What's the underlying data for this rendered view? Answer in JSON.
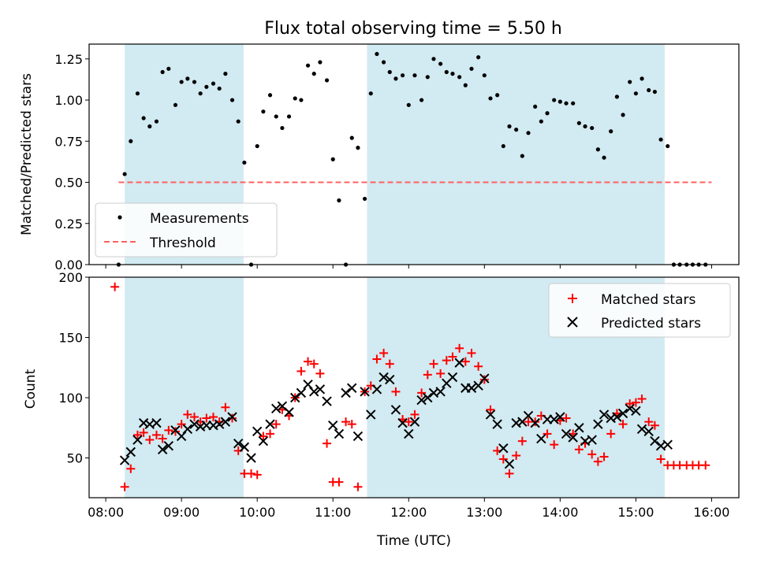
{
  "title": "Flux total observing time = 5.50 h",
  "colors": {
    "shade": "#add8e6",
    "measure": "#000000",
    "threshold": "#ff6060",
    "matched": "#ff0000",
    "predicted": "#000000"
  },
  "chart_data": [
    {
      "type": "scatter",
      "panel": "top",
      "ylabel": "Matched/Predicted stars",
      "xlim": [
        7.78,
        16.36
      ],
      "ylim": [
        0,
        1.34
      ],
      "yticks": [
        0.0,
        0.25,
        0.5,
        0.75,
        1.0,
        1.25
      ],
      "ytick_labels": [
        "0.00",
        "0.25",
        "0.50",
        "0.75",
        "1.00",
        "1.25"
      ],
      "shaded_regions": [
        [
          8.25,
          9.82
        ],
        [
          11.45,
          15.38
        ]
      ],
      "threshold": {
        "name": "Threshold",
        "y": 0.5,
        "x": [
          8.17,
          16.0
        ]
      },
      "legend": [
        "Measurements",
        "Threshold"
      ],
      "series": [
        {
          "name": "Measurements",
          "x": [
            8.17,
            8.25,
            8.33,
            8.42,
            8.5,
            8.58,
            8.67,
            8.75,
            8.83,
            8.92,
            9.0,
            9.08,
            9.17,
            9.25,
            9.33,
            9.42,
            9.5,
            9.58,
            9.67,
            9.75,
            9.83,
            9.92,
            10.0,
            10.08,
            10.17,
            10.25,
            10.33,
            10.42,
            10.5,
            10.58,
            10.67,
            10.75,
            10.83,
            10.92,
            11.0,
            11.08,
            11.17,
            11.25,
            11.33,
            11.42,
            11.5,
            11.58,
            11.67,
            11.75,
            11.83,
            11.92,
            12.0,
            12.08,
            12.17,
            12.25,
            12.33,
            12.42,
            12.5,
            12.58,
            12.67,
            12.75,
            12.83,
            12.92,
            13.0,
            13.08,
            13.17,
            13.25,
            13.33,
            13.42,
            13.5,
            13.58,
            13.67,
            13.75,
            13.83,
            13.92,
            14.0,
            14.08,
            14.17,
            14.25,
            14.33,
            14.42,
            14.5,
            14.58,
            14.67,
            14.75,
            14.83,
            14.92,
            15.0,
            15.08,
            15.17,
            15.25,
            15.33,
            15.42,
            15.5,
            15.58,
            15.67,
            15.75,
            15.83,
            15.92
          ],
          "y": [
            0.0,
            0.55,
            0.75,
            1.04,
            0.89,
            0.84,
            0.87,
            1.17,
            1.19,
            0.97,
            1.11,
            1.13,
            1.11,
            1.04,
            1.08,
            1.1,
            1.07,
            1.16,
            1.0,
            0.87,
            0.62,
            0.0,
            0.72,
            0.93,
            1.03,
            0.9,
            0.83,
            0.9,
            1.01,
            1.0,
            1.21,
            1.16,
            1.23,
            1.12,
            0.64,
            0.39,
            0.0,
            0.77,
            0.71,
            0.4,
            1.04,
            1.28,
            1.23,
            1.17,
            1.13,
            1.15,
            0.97,
            1.15,
            1.0,
            1.14,
            1.25,
            1.22,
            1.17,
            1.16,
            1.14,
            1.09,
            1.19,
            1.26,
            1.15,
            1.01,
            1.03,
            0.72,
            0.84,
            0.82,
            0.66,
            0.8,
            0.96,
            0.87,
            0.92,
            1.0,
            0.99,
            0.98,
            0.98,
            0.86,
            0.84,
            0.83,
            0.7,
            0.65,
            0.81,
            1.02,
            0.91,
            1.11,
            1.04,
            1.13,
            1.06,
            1.05,
            0.76,
            0.72,
            0.0,
            0.0,
            0.0,
            0.0,
            0.0,
            0.0
          ]
        }
      ]
    },
    {
      "type": "scatter",
      "panel": "bottom",
      "ylabel": "Count",
      "xlabel": "Time (UTC)",
      "xlim": [
        7.78,
        16.36
      ],
      "ylim": [
        17,
        200
      ],
      "yticks": [
        50,
        100,
        150,
        200
      ],
      "ytick_labels": [
        "50",
        "100",
        "150",
        "200"
      ],
      "xticks": [
        8,
        9,
        10,
        11,
        12,
        13,
        14,
        15,
        16
      ],
      "xtick_labels": [
        "08:00",
        "09:00",
        "10:00",
        "11:00",
        "12:00",
        "13:00",
        "14:00",
        "15:00",
        "16:00"
      ],
      "shaded_regions": [
        [
          8.25,
          9.82
        ],
        [
          11.45,
          15.38
        ]
      ],
      "legend": [
        "Matched stars",
        "Predicted stars"
      ],
      "series": [
        {
          "name": "Matched stars",
          "marker": "+",
          "x": [
            8.12,
            8.25,
            8.33,
            8.42,
            8.5,
            8.58,
            8.67,
            8.75,
            8.83,
            8.92,
            9.0,
            9.08,
            9.17,
            9.25,
            9.33,
            9.42,
            9.5,
            9.58,
            9.67,
            9.75,
            9.83,
            9.92,
            10.0,
            10.08,
            10.17,
            10.25,
            10.33,
            10.42,
            10.5,
            10.58,
            10.67,
            10.75,
            10.83,
            10.92,
            11.0,
            11.08,
            11.17,
            11.25,
            11.33,
            11.42,
            11.5,
            11.58,
            11.67,
            11.75,
            11.83,
            11.92,
            12.0,
            12.08,
            12.17,
            12.25,
            12.33,
            12.42,
            12.5,
            12.58,
            12.67,
            12.75,
            12.83,
            12.92,
            13.0,
            13.08,
            13.17,
            13.25,
            13.33,
            13.42,
            13.5,
            13.58,
            13.67,
            13.75,
            13.83,
            13.92,
            14.0,
            14.08,
            14.17,
            14.25,
            14.33,
            14.42,
            14.5,
            14.58,
            14.67,
            14.75,
            14.83,
            14.92,
            15.0,
            15.08,
            15.17,
            15.25,
            15.33,
            15.42,
            15.5,
            15.58,
            15.67,
            15.75,
            15.83,
            15.92
          ],
          "y": [
            192,
            26,
            41,
            69,
            71,
            65,
            69,
            66,
            73,
            72,
            78,
            86,
            84,
            80,
            83,
            84,
            80,
            92,
            83,
            56,
            37,
            37,
            36,
            68,
            70,
            78,
            90,
            85,
            100,
            122,
            130,
            128,
            120,
            62,
            30,
            30,
            80,
            78,
            26,
            105,
            110,
            132,
            137,
            128,
            105,
            82,
            80,
            86,
            104,
            119,
            128,
            120,
            131,
            134,
            141,
            130,
            137,
            126,
            115,
            90,
            56,
            49,
            37,
            52,
            64,
            80,
            80,
            85,
            70,
            61,
            81,
            83,
            70,
            57,
            62,
            53,
            47,
            51,
            70,
            87,
            78,
            95,
            96,
            99,
            80,
            77,
            49,
            44,
            44,
            44,
            44,
            44,
            44,
            44
          ]
        },
        {
          "name": "Predicted stars",
          "marker": "x",
          "x": [
            8.25,
            8.33,
            8.42,
            8.5,
            8.58,
            8.67,
            8.75,
            8.83,
            8.92,
            9.0,
            9.08,
            9.17,
            9.25,
            9.33,
            9.42,
            9.5,
            9.58,
            9.67,
            9.75,
            9.83,
            9.92,
            10.0,
            10.08,
            10.17,
            10.25,
            10.33,
            10.42,
            10.5,
            10.58,
            10.67,
            10.75,
            10.83,
            10.92,
            11.0,
            11.08,
            11.17,
            11.25,
            11.33,
            11.42,
            11.5,
            11.58,
            11.67,
            11.75,
            11.83,
            11.92,
            12.0,
            12.08,
            12.17,
            12.25,
            12.33,
            12.42,
            12.5,
            12.58,
            12.67,
            12.75,
            12.83,
            12.92,
            13.0,
            13.08,
            13.17,
            13.25,
            13.33,
            13.42,
            13.5,
            13.58,
            13.67,
            13.75,
            13.83,
            13.92,
            14.0,
            14.08,
            14.17,
            14.25,
            14.33,
            14.42,
            14.5,
            14.58,
            14.67,
            14.75,
            14.83,
            14.92,
            15.0,
            15.08,
            15.17,
            15.25,
            15.33,
            15.42
          ],
          "y": [
            48,
            55,
            65,
            79,
            78,
            79,
            57,
            60,
            73,
            68,
            74,
            78,
            76,
            77,
            77,
            78,
            80,
            84,
            62,
            59,
            50,
            72,
            64,
            78,
            91,
            93,
            88,
            100,
            104,
            111,
            105,
            107,
            97,
            77,
            70,
            104,
            108,
            68,
            105,
            86,
            107,
            117,
            115,
            90,
            79,
            70,
            80,
            98,
            100,
            104,
            105,
            112,
            117,
            129,
            108,
            108,
            110,
            116,
            86,
            78,
            58,
            45,
            79,
            80,
            85,
            79,
            66,
            82,
            82,
            84,
            70,
            67,
            75,
            64,
            65,
            78,
            86,
            83,
            84,
            87,
            91,
            89,
            74,
            72,
            64,
            60,
            61
          ]
        }
      ]
    }
  ]
}
